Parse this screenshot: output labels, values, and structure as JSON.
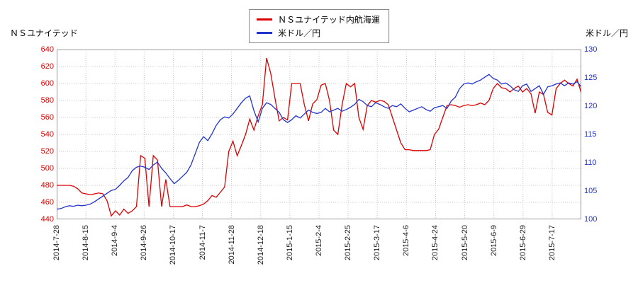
{
  "chart_data": {
    "type": "line",
    "grid": true,
    "legend_position": "top-center",
    "left_axis": {
      "label": "ＮＳユナイテッド",
      "min": 440,
      "max": 640,
      "step": 20,
      "color": "#dd0000"
    },
    "right_axis": {
      "label": "米ドル／円",
      "min": 100,
      "max": 130,
      "step": 5,
      "color": "#2233cc"
    },
    "x_labels": [
      "2014-7-28",
      "2014-8-15",
      "2014-9-4",
      "2014-9-26",
      "2014-10-17",
      "2014-11-7",
      "2014-11-28",
      "2014-12-18",
      "2015-1-15",
      "2015-2-4",
      "2015-2-25",
      "2015-3-17",
      "2015-4-6",
      "2015-4-24",
      "2015-5-20",
      "2015-6-9",
      "2015-6-29",
      "2015-7-17"
    ],
    "series": [
      {
        "name": "ＮＳユナイテッド内航海運",
        "axis": "left",
        "color": "#dd0000",
        "values": [
          480,
          480,
          480,
          480,
          479,
          476,
          471,
          470,
          469,
          470,
          471,
          470,
          462,
          444,
          450,
          445,
          452,
          447,
          450,
          455,
          515,
          512,
          455,
          515,
          510,
          455,
          487,
          455,
          455,
          455,
          455,
          457,
          455,
          455,
          456,
          458,
          462,
          468,
          466,
          472,
          478,
          520,
          532,
          515,
          527,
          540,
          558,
          545,
          562,
          575,
          630,
          612,
          583,
          556,
          560,
          557,
          600,
          600,
          600,
          575,
          556,
          576,
          581,
          598,
          600,
          580,
          545,
          540,
          575,
          600,
          596,
          600,
          560,
          546,
          574,
          580,
          578,
          580,
          579,
          575,
          560,
          545,
          530,
          522,
          522,
          521,
          521,
          521,
          521,
          522,
          540,
          546,
          560,
          574,
          575,
          574,
          572,
          574,
          575,
          574,
          575,
          577,
          575,
          580,
          594,
          600,
          595,
          594,
          590,
          594,
          597,
          590,
          594,
          588,
          565,
          590,
          587,
          566,
          563,
          594,
          600,
          604,
          600,
          597,
          605,
          589
        ]
      },
      {
        "name": "米ドル／円",
        "axis": "right",
        "color": "#2233cc",
        "values": [
          101.8,
          101.9,
          102.2,
          102.4,
          102.3,
          102.5,
          102.4,
          102.5,
          102.7,
          103.1,
          103.6,
          104.1,
          104.6,
          105.1,
          105.3,
          106.0,
          106.8,
          107.4,
          108.6,
          109.2,
          109.4,
          109.2,
          108.8,
          109.6,
          110.1,
          109.0,
          108.2,
          107.2,
          106.3,
          106.9,
          107.6,
          108.3,
          109.6,
          111.6,
          113.6,
          114.6,
          113.9,
          115.1,
          116.6,
          117.6,
          118.1,
          117.9,
          118.6,
          119.6,
          120.6,
          121.4,
          121.8,
          119.2,
          117.2,
          119.6,
          120.6,
          120.3,
          119.6,
          118.9,
          117.6,
          117.1,
          117.6,
          118.3,
          117.9,
          118.6,
          119.3,
          118.9,
          118.7,
          118.9,
          119.6,
          119.0,
          119.3,
          119.6,
          119.1,
          119.4,
          119.8,
          120.3,
          121.2,
          120.8,
          120.1,
          119.9,
          120.6,
          120.3,
          119.9,
          119.6,
          120.1,
          119.9,
          120.4,
          119.6,
          119.0,
          119.3,
          119.6,
          119.9,
          119.4,
          119.1,
          119.7,
          119.9,
          120.1,
          119.6,
          120.9,
          121.6,
          123.1,
          123.9,
          124.1,
          123.9,
          124.3,
          124.6,
          125.1,
          125.6,
          124.9,
          124.6,
          123.9,
          124.1,
          123.6,
          122.9,
          122.6,
          123.6,
          123.9,
          122.6,
          123.1,
          123.6,
          122.1,
          123.4,
          123.6,
          123.9,
          124.1,
          123.6,
          124.1,
          123.9,
          124.3,
          123.4
        ]
      }
    ]
  }
}
